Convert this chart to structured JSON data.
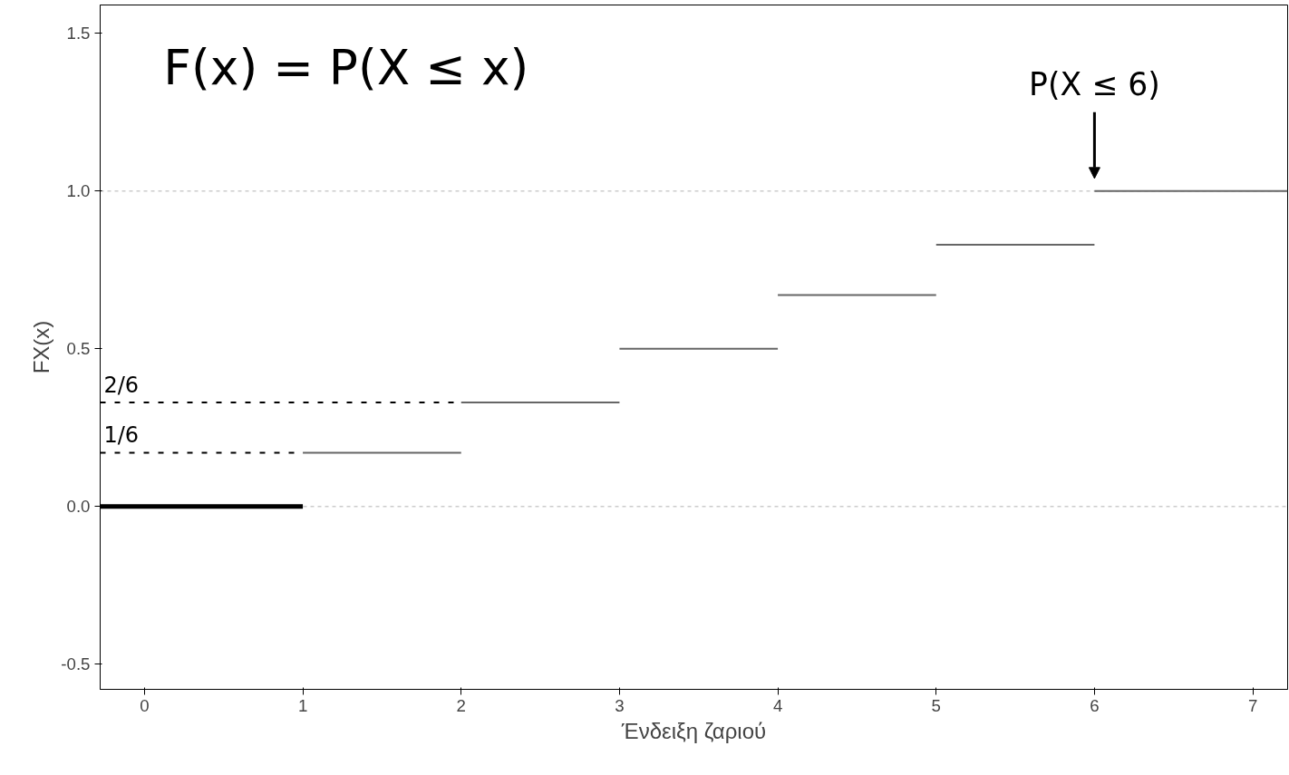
{
  "chart_data": {
    "type": "line",
    "series": [
      {
        "color": "#000000",
        "x": [
          -0.28,
          1
        ],
        "values": [
          0,
          0
        ]
      },
      {
        "color": "#666666",
        "x": [
          1,
          2
        ],
        "values": [
          0.17,
          0.17
        ]
      },
      {
        "color": "#666666",
        "x": [
          2,
          3
        ],
        "values": [
          0.33,
          0.33
        ]
      },
      {
        "color": "#666666",
        "x": [
          3,
          4
        ],
        "values": [
          0.5,
          0.5
        ]
      },
      {
        "color": "#666666",
        "x": [
          4,
          5
        ],
        "values": [
          0.67,
          0.67
        ]
      },
      {
        "color": "#666666",
        "x": [
          5,
          6
        ],
        "values": [
          0.83,
          0.83
        ]
      },
      {
        "color": "#666666",
        "x": [
          6,
          7.22
        ],
        "values": [
          1.0,
          1.0
        ]
      }
    ],
    "xlabel": "Ένδειξη ζαριού",
    "ylabel": "FX(x)",
    "xlim": [
      -0.28,
      7.22
    ],
    "ylim": [
      -0.58,
      1.59
    ],
    "xticks": [
      0,
      1,
      2,
      3,
      4,
      5,
      6,
      7
    ],
    "yticks": [
      {
        "value": -0.5,
        "label": "-0.5"
      },
      {
        "value": 0,
        "label": "0.0"
      },
      {
        "value": 0.5,
        "label": "0.5"
      },
      {
        "value": 1,
        "label": "1.0"
      },
      {
        "value": 1.5,
        "label": "1.5"
      }
    ],
    "line_style": "solid",
    "ref_lines": [
      {
        "axis": "y",
        "value": 0,
        "label": null,
        "color": "#cccccc",
        "line_style": "dashed"
      },
      {
        "axis": "y",
        "value": 1,
        "label": null,
        "color": "#cccccc",
        "line_style": "dashed"
      }
    ],
    "annotations": [
      "F(x) = P(X ≤ x)",
      {
        "text": "P(X ≤ 6)",
        "x": 6,
        "y": 1.0
      },
      {
        "text": "1/6",
        "x": 1,
        "y": 0.17
      },
      {
        "text": "2/6",
        "x": 2,
        "y": 0.33
      }
    ]
  }
}
